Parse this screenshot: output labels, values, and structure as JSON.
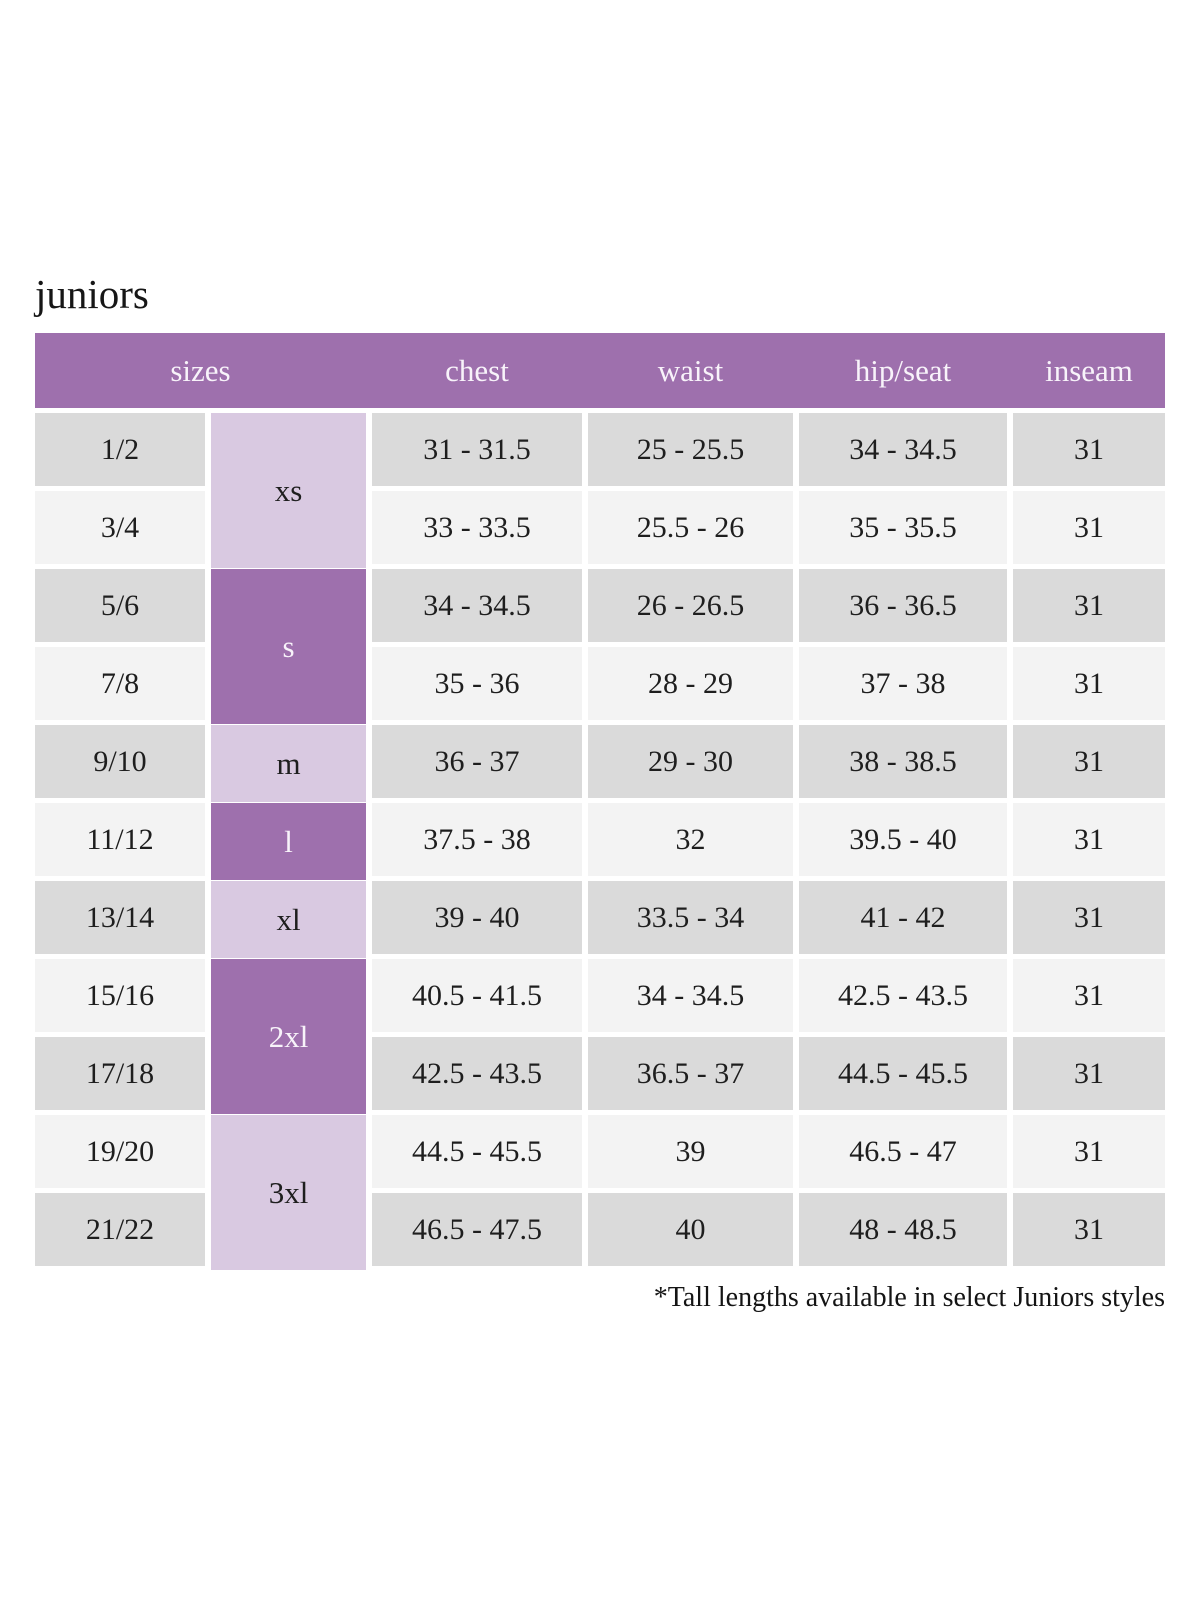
{
  "page": {
    "title": "juniors",
    "footnote": "*Tall lengths available in select Juniors styles"
  },
  "colors": {
    "header_purple": "#9e70ad",
    "dark_group_purple": "#9e70ad",
    "light_group_purple": "#d9c9e1",
    "row_gray": "#dadada",
    "row_light_gray": "#f3f3f3",
    "header_text": "#f8f3fa",
    "body_text": "#1e1e1e"
  },
  "table": {
    "headers": [
      "sizes",
      "chest",
      "waist",
      "hip/seat",
      "inseam"
    ],
    "size_groups": [
      {
        "label": "xs",
        "row_span": 2,
        "shade": "light"
      },
      {
        "label": "s",
        "row_span": 2,
        "shade": "dark"
      },
      {
        "label": "m",
        "row_span": 1,
        "shade": "light"
      },
      {
        "label": "l",
        "row_span": 1,
        "shade": "dark"
      },
      {
        "label": "xl",
        "row_span": 1,
        "shade": "light"
      },
      {
        "label": "2xl",
        "row_span": 2,
        "shade": "dark"
      },
      {
        "label": "3xl",
        "row_span": 2,
        "shade": "light"
      }
    ],
    "rows": [
      {
        "size": "1/2",
        "chest": "31 - 31.5",
        "waist": "25 - 25.5",
        "hip_seat": "34 - 34.5",
        "inseam": "31"
      },
      {
        "size": "3/4",
        "chest": "33 - 33.5",
        "waist": "25.5 - 26",
        "hip_seat": "35 - 35.5",
        "inseam": "31"
      },
      {
        "size": "5/6",
        "chest": "34 - 34.5",
        "waist": "26 - 26.5",
        "hip_seat": "36 - 36.5",
        "inseam": "31"
      },
      {
        "size": "7/8",
        "chest": "35 - 36",
        "waist": "28 - 29",
        "hip_seat": "37 - 38",
        "inseam": "31"
      },
      {
        "size": "9/10",
        "chest": "36 - 37",
        "waist": "29 - 30",
        "hip_seat": "38 - 38.5",
        "inseam": "31"
      },
      {
        "size": "11/12",
        "chest": "37.5 - 38",
        "waist": "32",
        "hip_seat": "39.5 - 40",
        "inseam": "31"
      },
      {
        "size": "13/14",
        "chest": "39 - 40",
        "waist": "33.5 - 34",
        "hip_seat": "41 - 42",
        "inseam": "31"
      },
      {
        "size": "15/16",
        "chest": "40.5 - 41.5",
        "waist": "34 - 34.5",
        "hip_seat": "42.5 - 43.5",
        "inseam": "31"
      },
      {
        "size": "17/18",
        "chest": "42.5 - 43.5",
        "waist": "36.5 - 37",
        "hip_seat": "44.5 - 45.5",
        "inseam": "31"
      },
      {
        "size": "19/20",
        "chest": "44.5 - 45.5",
        "waist": "39",
        "hip_seat": "46.5 - 47",
        "inseam": "31"
      },
      {
        "size": "21/22",
        "chest": "46.5 - 47.5",
        "waist": "40",
        "hip_seat": "48 - 48.5",
        "inseam": "31"
      }
    ]
  }
}
